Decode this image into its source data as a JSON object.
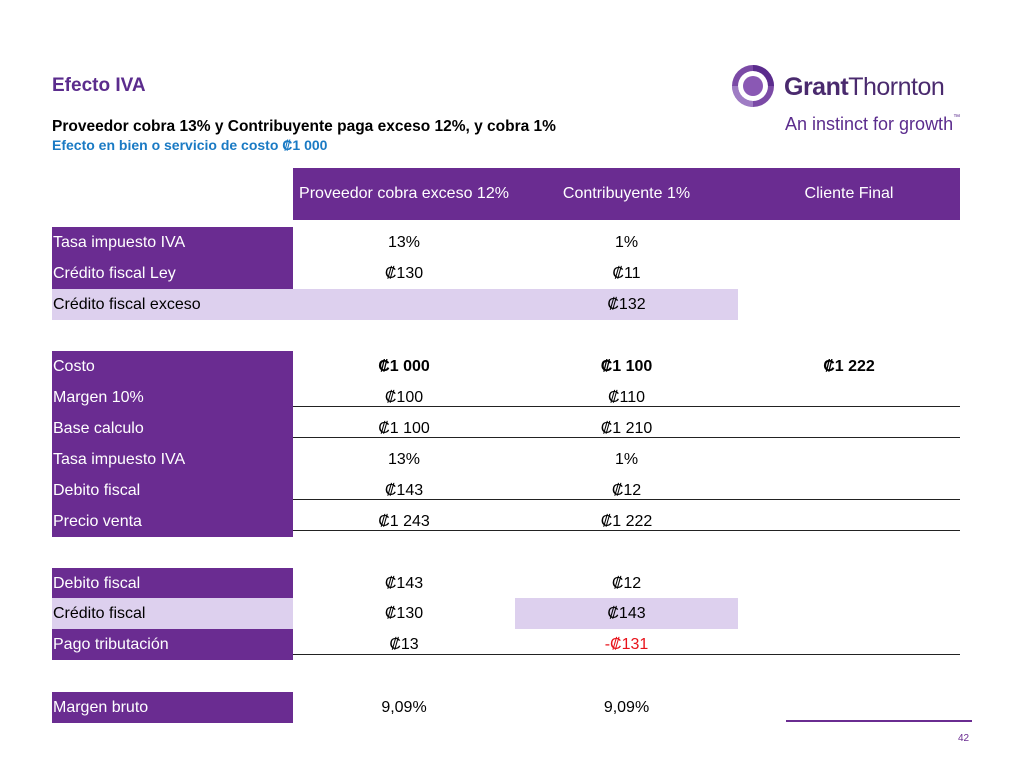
{
  "title": "Efecto IVA",
  "subtitle": "Proveedor cobra 13% y Contribuyente paga exceso 12%, y cobra 1%",
  "subtitle2": "Efecto en bien o servicio de costo ₡1 000",
  "logo": {
    "name_bold": "Grant",
    "name_rest": "Thornton",
    "tagline": "An instinct for growth",
    "tm": "™"
  },
  "columns": [
    "Proveedor cobra exceso 12%",
    "Contribuyente 1%",
    "Cliente Final"
  ],
  "rows": {
    "tasa1": {
      "label": "Tasa impuesto IVA",
      "c1": "13%",
      "c2": "1%",
      "c3": ""
    },
    "credley": {
      "label": "Crédito fiscal Ley",
      "c1": "₡130",
      "c2": "₡11",
      "c3": ""
    },
    "credexceso": {
      "label": "Crédito fiscal exceso",
      "c1": "",
      "c2": "₡132",
      "c3": ""
    },
    "costo": {
      "label": "Costo",
      "c1": "₡1 000",
      "c2": "₡1 100",
      "c3": "₡1 222"
    },
    "margen": {
      "label": "Margen 10%",
      "c1": "₡100",
      "c2": "₡110",
      "c3": ""
    },
    "base": {
      "label": "Base calculo",
      "c1": "₡1 100",
      "c2": "₡1 210",
      "c3": ""
    },
    "tasa2": {
      "label": "Tasa impuesto IVA",
      "c1": "13%",
      "c2": "1%",
      "c3": ""
    },
    "debito1": {
      "label": "Debito fiscal",
      "c1": "₡143",
      "c2": "₡12",
      "c3": ""
    },
    "precio": {
      "label": "Precio venta",
      "c1": "₡1 243",
      "c2": "₡1 222",
      "c3": ""
    },
    "debito2": {
      "label": "Debito fiscal",
      "c1": "₡143",
      "c2": "₡12",
      "c3": ""
    },
    "credito": {
      "label": "Crédito fiscal",
      "c1": "₡130",
      "c2": "₡143",
      "c3": ""
    },
    "pago": {
      "label": "Pago tributación",
      "c1": "₡13",
      "c2": "-₡131",
      "c3": ""
    },
    "margenb": {
      "label": "Margen bruto",
      "c1": "9,09%",
      "c2": "9,09%",
      "c3": ""
    }
  },
  "page_number": "42",
  "colors": {
    "brand_purple": "#6a2c91",
    "light_purple": "#ddd0ee",
    "accent_blue": "#1a7ac4",
    "negative_red": "#e8121a"
  }
}
